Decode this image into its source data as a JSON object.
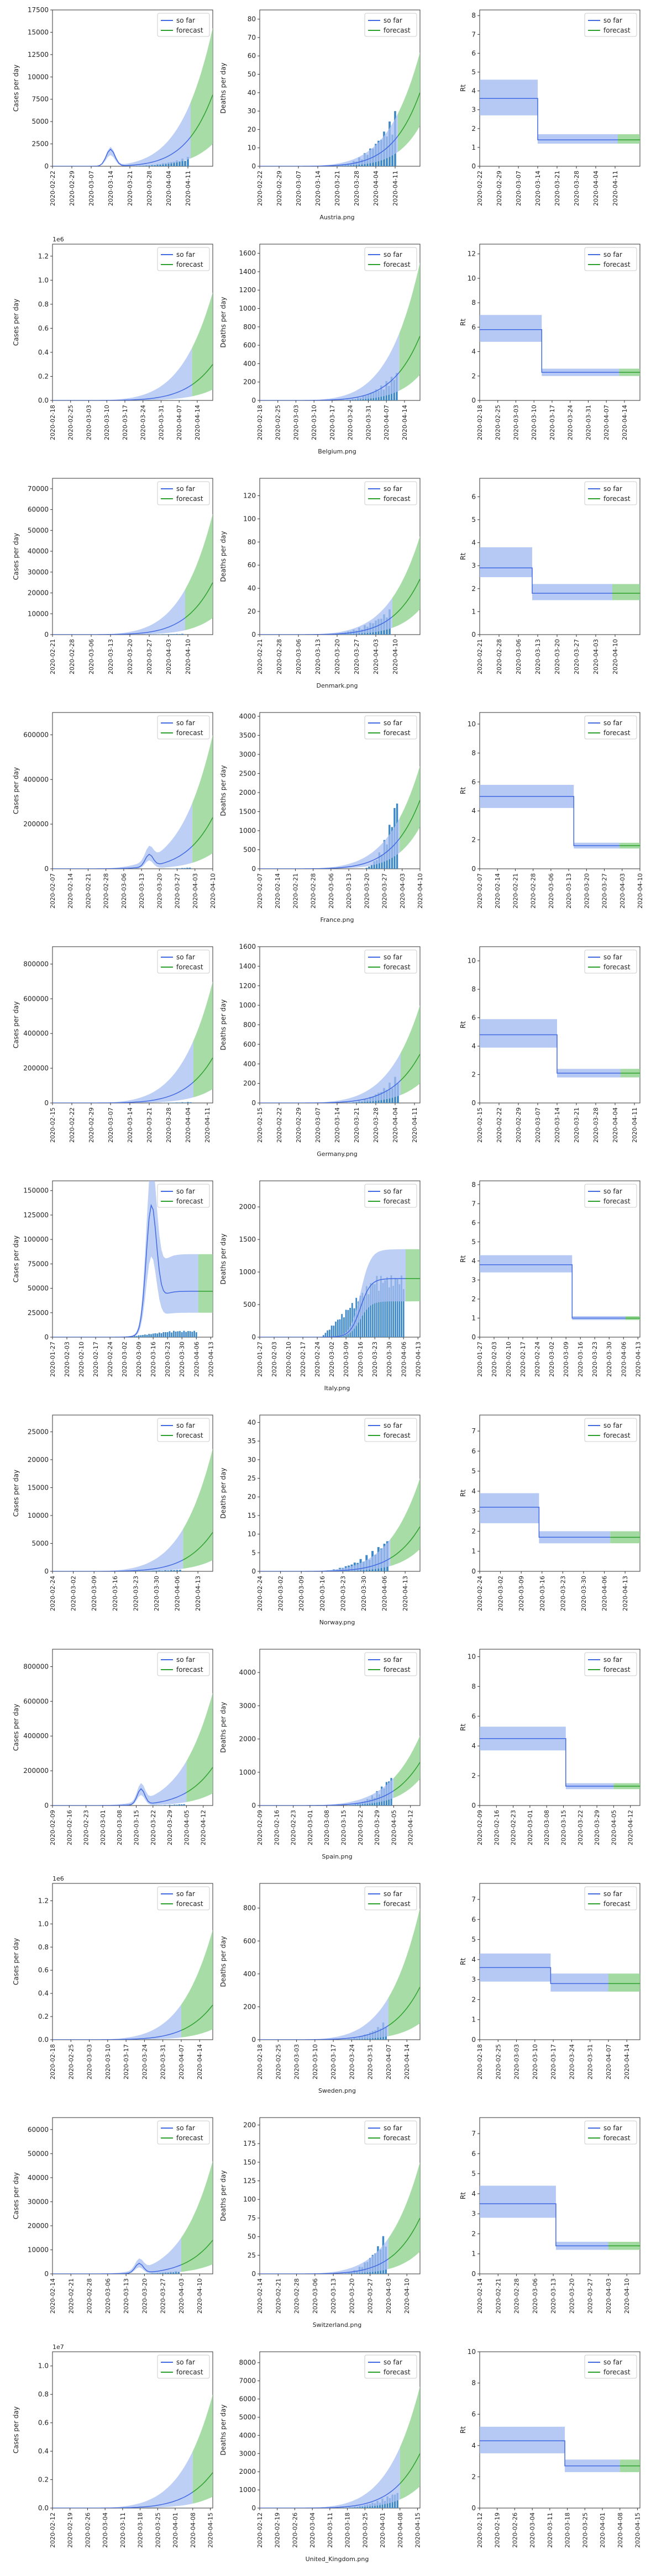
{
  "legend": {
    "so_far": "so far",
    "forecast": "forecast"
  },
  "colors": {
    "so_far": "#4169e1",
    "so_far_band": "#a8bff2",
    "forecast": "#2ca02c",
    "forecast_band": "#98d698",
    "bars": "#3c88c8"
  },
  "chart_data": [
    {
      "country": "Austria.png",
      "start": "2020-02-22",
      "days": 59,
      "forecast_start": "2020-04-12",
      "x_ticks": [
        "2020-02-22",
        "2020-02-29",
        "2020-03-07",
        "2020-03-14",
        "2020-03-21",
        "2020-03-28",
        "2020-04-04",
        "2020-04-11"
      ],
      "cases": {
        "ylabel": "Cases per day",
        "ylim": [
          0,
          17500
        ],
        "yticks": [
          0,
          2500,
          5000,
          7500,
          10000,
          12500,
          15000,
          17500
        ],
        "exp": "",
        "end_med": 8000,
        "end_up": 15500,
        "end_lo": 2500,
        "bump": {
          "day": 21,
          "val": 2100
        },
        "bars_peak": 1050,
        "bars_start": 26
      },
      "deaths": {
        "ylabel": "Deaths per day",
        "ylim": [
          0,
          85
        ],
        "yticks": [
          0,
          10,
          20,
          30,
          40,
          50,
          60,
          70,
          80
        ],
        "end_med": 40,
        "end_up": 62,
        "end_lo": 22,
        "bars_peak": 30,
        "bars_start": 26
      },
      "rt": {
        "ylabel": "Rt",
        "ylim": [
          0,
          8.3
        ],
        "yticks": [
          0,
          1,
          2,
          3,
          4,
          5,
          6,
          7,
          8
        ],
        "r0": 3.6,
        "r0_lo": 2.7,
        "r0_up": 4.6,
        "r1": 1.4,
        "r1_lo": 1.2,
        "r1_up": 1.7,
        "change_day": 21
      }
    },
    {
      "country": "Belgium.png",
      "start": "2020-02-18",
      "days": 63,
      "forecast_start": "2020-04-12",
      "x_ticks": [
        "2020-02-18",
        "2020-02-25",
        "2020-03-03",
        "2020-03-10",
        "2020-03-17",
        "2020-03-24",
        "2020-03-31",
        "2020-04-07",
        "2020-04-14"
      ],
      "cases": {
        "ylabel": "Cases per day",
        "ylim": [
          0,
          1300000
        ],
        "yticks": [
          0,
          200000,
          400000,
          600000,
          800000,
          1000000,
          1200000
        ],
        "exp": "1e6",
        "end_med": 300000,
        "end_up": 900000,
        "end_lo": 90000,
        "bars_peak": 1500,
        "bars_start": 30
      },
      "deaths": {
        "ylabel": "Deaths per day",
        "ylim": [
          0,
          1700
        ],
        "yticks": [
          0,
          200,
          400,
          600,
          800,
          1000,
          1200,
          1400,
          1600
        ],
        "end_med": 700,
        "end_up": 1500,
        "end_lo": 280,
        "bars_peak": 320,
        "bars_start": 30
      },
      "rt": {
        "ylabel": "Rt",
        "ylim": [
          0,
          12.8
        ],
        "yticks": [
          0,
          2,
          4,
          6,
          8,
          10,
          12
        ],
        "r0": 5.8,
        "r0_lo": 4.8,
        "r0_up": 7.0,
        "r1": 2.3,
        "r1_lo": 2.0,
        "r1_up": 2.6,
        "change_day": 24
      }
    },
    {
      "country": "Denmark.png",
      "start": "2020-02-21",
      "days": 59,
      "forecast_start": "2020-04-09",
      "x_ticks": [
        "2020-02-21",
        "2020-02-28",
        "2020-03-06",
        "2020-03-13",
        "2020-03-20",
        "2020-03-27",
        "2020-04-03",
        "2020-04-10"
      ],
      "cases": {
        "ylabel": "Cases per day",
        "ylim": [
          0,
          75000
        ],
        "yticks": [
          0,
          10000,
          20000,
          30000,
          40000,
          50000,
          60000,
          70000
        ],
        "exp": "",
        "end_med": 25000,
        "end_up": 58000,
        "end_lo": 8000,
        "bars_peak": 400,
        "bars_start": 22
      },
      "deaths": {
        "ylabel": "Deaths per day",
        "ylim": [
          0,
          135
        ],
        "yticks": [
          0,
          20,
          40,
          60,
          80,
          100,
          120
        ],
        "end_med": 48,
        "end_up": 85,
        "end_lo": 22,
        "bars_peak": 22,
        "bars_start": 22
      },
      "rt": {
        "ylabel": "Rt",
        "ylim": [
          0,
          6.8
        ],
        "yticks": [
          0,
          1,
          2,
          3,
          4,
          5,
          6
        ],
        "r0": 2.9,
        "r0_lo": 2.5,
        "r0_up": 3.8,
        "r1": 1.8,
        "r1_lo": 1.5,
        "r1_up": 2.2,
        "change_day": 19
      }
    },
    {
      "country": "France.png",
      "start": "2020-02-07",
      "days": 64,
      "forecast_start": "2020-04-02",
      "x_ticks": [
        "2020-02-07",
        "2020-02-14",
        "2020-02-21",
        "2020-02-28",
        "2020-03-06",
        "2020-03-13",
        "2020-03-20",
        "2020-03-27",
        "2020-04-03",
        "2020-04-10"
      ],
      "cases": {
        "ylabel": "Cases per day",
        "ylim": [
          0,
          700000
        ],
        "yticks": [
          0,
          200000,
          400000,
          600000
        ],
        "exp": "",
        "end_med": 230000,
        "end_up": 600000,
        "end_lo": 70000,
        "bump": {
          "day": 38,
          "val": 60000
        },
        "bars_peak": 6000,
        "bars_start": 40
      },
      "deaths": {
        "ylabel": "Deaths per day",
        "ylim": [
          0,
          4100
        ],
        "yticks": [
          0,
          500,
          1000,
          1500,
          2000,
          2500,
          3000,
          3500,
          4000
        ],
        "end_med": 1800,
        "end_up": 2700,
        "end_lo": 1100,
        "bars_peak": 2000,
        "bars_start": 40
      },
      "rt": {
        "ylabel": "Rt",
        "ylim": [
          0,
          10.8
        ],
        "yticks": [
          0,
          2,
          4,
          6,
          8,
          10
        ],
        "r0": 5.0,
        "r0_lo": 4.2,
        "r0_up": 5.8,
        "r1": 1.6,
        "r1_lo": 1.4,
        "r1_up": 1.8,
        "change_day": 37
      }
    },
    {
      "country": "Germany.png",
      "start": "2020-02-15",
      "days": 59,
      "forecast_start": "2020-04-06",
      "x_ticks": [
        "2020-02-15",
        "2020-02-22",
        "2020-02-29",
        "2020-03-07",
        "2020-03-14",
        "2020-03-21",
        "2020-03-28",
        "2020-04-04",
        "2020-04-11"
      ],
      "cases": {
        "ylabel": "Cases per day",
        "ylim": [
          0,
          900000
        ],
        "yticks": [
          0,
          200000,
          400000,
          600000,
          800000
        ],
        "exp": "",
        "end_med": 260000,
        "end_up": 700000,
        "end_lo": 80000,
        "bars_peak": 6000,
        "bars_start": 30
      },
      "deaths": {
        "ylabel": "Deaths per day",
        "ylim": [
          0,
          1600
        ],
        "yticks": [
          0,
          200,
          400,
          600,
          800,
          1000,
          1200,
          1400,
          1600
        ],
        "end_med": 500,
        "end_up": 1000,
        "end_lo": 200,
        "bars_peak": 300,
        "bars_start": 30
      },
      "rt": {
        "ylabel": "Rt",
        "ylim": [
          0,
          11
        ],
        "yticks": [
          0,
          2,
          4,
          6,
          8,
          10
        ],
        "r0": 4.8,
        "r0_lo": 3.9,
        "r0_up": 5.9,
        "r1": 2.1,
        "r1_lo": 1.8,
        "r1_up": 2.4,
        "change_day": 28
      }
    },
    {
      "country": "Italy.png",
      "start": "2020-01-27",
      "days": 79,
      "forecast_start": "2020-04-07",
      "x_ticks": [
        "2020-01-27",
        "2020-02-03",
        "2020-02-10",
        "2020-02-17",
        "2020-02-24",
        "2020-03-02",
        "2020-03-09",
        "2020-03-16",
        "2020-03-23",
        "2020-03-30",
        "2020-04-06",
        "2020-04-13"
      ],
      "cases": {
        "ylabel": "Cases per day",
        "ylim": [
          0,
          160000
        ],
        "yticks": [
          0,
          25000,
          50000,
          75000,
          100000,
          125000,
          150000
        ],
        "exp": "",
        "plateau": true,
        "peak_day": 48,
        "peak_val": 145000,
        "end_med": 47000,
        "end_up": 85000,
        "end_lo": 25000,
        "bars_peak": 6500,
        "bars_start": 35
      },
      "deaths": {
        "ylabel": "Deaths per day",
        "ylim": [
          0,
          2400
        ],
        "yticks": [
          0,
          500,
          1000,
          1500,
          2000
        ],
        "plateau": true,
        "end_med": 900,
        "end_up": 1350,
        "end_lo": 550,
        "bars_peak": 950,
        "bars_start": 30
      },
      "rt": {
        "ylabel": "Rt",
        "ylim": [
          0,
          8.2
        ],
        "yticks": [
          0,
          1,
          2,
          3,
          4,
          5,
          6,
          7,
          8
        ],
        "r0": 3.8,
        "r0_lo": 3.4,
        "r0_up": 4.3,
        "r1": 1.0,
        "r1_lo": 0.9,
        "r1_up": 1.1,
        "change_day": 45
      }
    },
    {
      "country": "Norway.png",
      "start": "2020-02-24",
      "days": 55,
      "forecast_start": "2020-04-08",
      "x_ticks": [
        "2020-02-24",
        "2020-03-02",
        "2020-03-09",
        "2020-03-16",
        "2020-03-23",
        "2020-03-30",
        "2020-04-06",
        "2020-04-13"
      ],
      "cases": {
        "ylabel": "Cases per day",
        "ylim": [
          0,
          28000
        ],
        "yticks": [
          0,
          5000,
          10000,
          15000,
          20000,
          25000
        ],
        "exp": "",
        "end_med": 7000,
        "end_up": 22000,
        "end_lo": 2000,
        "bars_peak": 300,
        "bars_start": 15
      },
      "deaths": {
        "ylabel": "Deaths per day",
        "ylim": [
          0,
          42
        ],
        "yticks": [
          0,
          5,
          10,
          15,
          20,
          25,
          30,
          35,
          40
        ],
        "end_med": 12,
        "end_up": 25,
        "end_lo": 6,
        "bars_peak": 9,
        "bars_start": 18
      },
      "rt": {
        "ylabel": "Rt",
        "ylim": [
          0,
          7.8
        ],
        "yticks": [
          0,
          1,
          2,
          3,
          4,
          5,
          6,
          7
        ],
        "r0": 3.2,
        "r0_lo": 2.4,
        "r0_up": 3.9,
        "r1": 1.7,
        "r1_lo": 1.4,
        "r1_up": 2.0,
        "change_day": 20
      }
    },
    {
      "country": "Spain.png",
      "start": "2020-02-09",
      "days": 68,
      "forecast_start": "2020-04-05",
      "x_ticks": [
        "2020-02-09",
        "2020-02-16",
        "2020-02-23",
        "2020-03-01",
        "2020-03-08",
        "2020-03-15",
        "2020-03-22",
        "2020-03-29",
        "2020-04-05",
        "2020-04-12"
      ],
      "cases": {
        "ylabel": "Cases per day",
        "ylim": [
          0,
          900000
        ],
        "yticks": [
          0,
          200000,
          400000,
          600000,
          800000
        ],
        "exp": "",
        "end_med": 220000,
        "end_up": 650000,
        "end_lo": 70000,
        "bump": {
          "day": 37,
          "val": 100000
        },
        "bars_peak": 9000,
        "bars_start": 35
      },
      "deaths": {
        "ylabel": "Deaths per day",
        "ylim": [
          0,
          4700
        ],
        "yticks": [
          0,
          1000,
          2000,
          3000,
          4000
        ],
        "end_med": 1300,
        "end_up": 2100,
        "end_lo": 800,
        "bars_peak": 950,
        "bars_start": 35
      },
      "rt": {
        "ylabel": "Rt",
        "ylim": [
          0,
          10.5
        ],
        "yticks": [
          0,
          2,
          4,
          6,
          8,
          10
        ],
        "r0": 4.5,
        "r0_lo": 3.7,
        "r0_up": 5.3,
        "r1": 1.3,
        "r1_lo": 1.1,
        "r1_up": 1.5,
        "change_day": 36
      }
    },
    {
      "country": "Sweden.png",
      "start": "2020-02-18",
      "days": 62,
      "forecast_start": "2020-04-07",
      "x_ticks": [
        "2020-02-18",
        "2020-02-25",
        "2020-03-03",
        "2020-03-10",
        "2020-03-17",
        "2020-03-24",
        "2020-03-31",
        "2020-04-07",
        "2020-04-14"
      ],
      "cases": {
        "ylabel": "Cases per day",
        "ylim": [
          0,
          1350000
        ],
        "yticks": [
          0,
          200000,
          400000,
          600000,
          800000,
          1000000,
          1200000
        ],
        "exp": "1e6",
        "end_med": 300000,
        "end_up": 950000,
        "end_lo": 90000,
        "bars_peak": 700,
        "bars_start": 22
      },
      "deaths": {
        "ylabel": "Deaths per day",
        "ylim": [
          0,
          950
        ],
        "yticks": [
          0,
          200,
          400,
          600,
          800
        ],
        "end_med": 320,
        "end_up": 800,
        "end_lo": 100,
        "bars_peak": 120,
        "bars_start": 30
      },
      "rt": {
        "ylabel": "Rt",
        "ylim": [
          0,
          7.8
        ],
        "yticks": [
          0,
          1,
          2,
          3,
          4,
          5,
          6,
          7
        ],
        "r0": 3.6,
        "r0_lo": 2.9,
        "r0_up": 4.3,
        "r1": 2.8,
        "r1_lo": 2.4,
        "r1_up": 3.3,
        "change_day": 27
      }
    },
    {
      "country": "Switzerland.png",
      "start": "2020-02-14",
      "days": 62,
      "forecast_start": "2020-04-03",
      "x_ticks": [
        "2020-02-14",
        "2020-02-21",
        "2020-02-28",
        "2020-03-06",
        "2020-03-13",
        "2020-03-20",
        "2020-03-27",
        "2020-04-03",
        "2020-04-10"
      ],
      "cases": {
        "ylabel": "Cases per day",
        "ylim": [
          0,
          65000
        ],
        "yticks": [
          0,
          10000,
          20000,
          30000,
          40000,
          50000,
          60000
        ],
        "exp": "",
        "end_med": 14000,
        "end_up": 47000,
        "end_lo": 4000,
        "bump": {
          "day": 33,
          "val": 4500
        },
        "bars_peak": 1300,
        "bars_start": 27
      },
      "deaths": {
        "ylabel": "Deaths per day",
        "ylim": [
          0,
          210
        ],
        "yticks": [
          0,
          25,
          50,
          75,
          100,
          125,
          150,
          175,
          200
        ],
        "end_med": 75,
        "end_up": 150,
        "end_lo": 30,
        "bars_peak": 58,
        "bars_start": 30
      },
      "rt": {
        "ylabel": "Rt",
        "ylim": [
          0,
          7.8
        ],
        "yticks": [
          0,
          1,
          2,
          3,
          4,
          5,
          6,
          7
        ],
        "r0": 3.5,
        "r0_lo": 2.8,
        "r0_up": 4.4,
        "r1": 1.4,
        "r1_lo": 1.2,
        "r1_up": 1.6,
        "change_day": 29
      }
    },
    {
      "country": "United_Kingdom.png",
      "start": "2020-02-12",
      "days": 65,
      "forecast_start": "2020-04-08",
      "x_ticks": [
        "2020-02-12",
        "2020-02-19",
        "2020-02-26",
        "2020-03-04",
        "2020-03-11",
        "2020-03-18",
        "2020-03-25",
        "2020-04-01",
        "2020-04-08",
        "2020-04-15"
      ],
      "cases": {
        "ylabel": "Cases per day",
        "ylim": [
          0,
          11000000
        ],
        "yticks": [
          0,
          2000000,
          4000000,
          6000000,
          8000000,
          10000000
        ],
        "exp": "1e7",
        "end_med": 2500000,
        "end_up": 8000000,
        "end_lo": 800000,
        "bars_peak": 5000,
        "bars_start": 30
      },
      "deaths": {
        "ylabel": "Deaths per day",
        "ylim": [
          0,
          8600
        ],
        "yticks": [
          0,
          1000,
          2000,
          3000,
          4000,
          5000,
          6000,
          7000,
          8000
        ],
        "end_med": 3000,
        "end_up": 6700,
        "end_lo": 1200,
        "bars_peak": 950,
        "bars_start": 30
      },
      "rt": {
        "ylabel": "Rt",
        "ylim": [
          0,
          10
        ],
        "yticks": [
          0,
          2,
          4,
          6,
          8,
          10
        ],
        "r0": 4.3,
        "r0_lo": 3.5,
        "r0_up": 5.2,
        "r1": 2.7,
        "r1_lo": 2.3,
        "r1_up": 3.1,
        "change_day": 34
      }
    }
  ]
}
